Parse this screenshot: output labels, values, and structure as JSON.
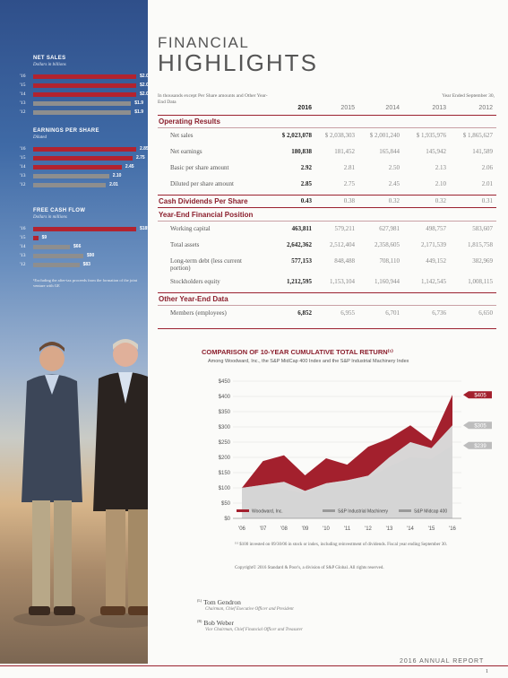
{
  "header": {
    "title_small": "FINANCIAL",
    "title_large": "HIGHLIGHTS"
  },
  "sidebar": {
    "sections": [
      {
        "title": "NET SALES",
        "subtitle": "Dollars in billions",
        "rows": [
          {
            "year": "'16",
            "value": 2.0,
            "label": "$2.0",
            "color": "#b2232f"
          },
          {
            "year": "'15",
            "value": 2.0,
            "label": "$2.0",
            "color": "#b2232f"
          },
          {
            "year": "'14",
            "value": 2.0,
            "label": "$2.0",
            "color": "#b2232f"
          },
          {
            "year": "'13",
            "value": 1.9,
            "label": "$1.9",
            "color": "#8e8e8e"
          },
          {
            "year": "'12",
            "value": 1.9,
            "label": "$1.9",
            "color": "#8e8e8e"
          }
        ]
      },
      {
        "title": "EARNINGS PER SHARE",
        "subtitle": "Diluted",
        "rows": [
          {
            "year": "'16",
            "value": 2.85,
            "label": "2.85",
            "color": "#b2232f"
          },
          {
            "year": "'15",
            "value": 2.75,
            "label": "2.75",
            "color": "#b2232f"
          },
          {
            "year": "'14",
            "value": 2.45,
            "label": "2.45",
            "color": "#b2232f"
          },
          {
            "year": "'13",
            "value": 2.1,
            "label": "2.10",
            "color": "#8e8e8e"
          },
          {
            "year": "'12",
            "value": 2.01,
            "label": "2.01",
            "color": "#8e8e8e"
          }
        ]
      },
      {
        "title": "FREE CASH FLOW",
        "subtitle": "Dollars in millions",
        "rows": [
          {
            "year": "'16",
            "value": 185,
            "label": "$185¹",
            "color": "#b2232f"
          },
          {
            "year": "'15",
            "value": 9,
            "label": "$9",
            "color": "#b2232f"
          },
          {
            "year": "'14",
            "value": 66,
            "label": "$66",
            "color": "#8e8e8e"
          },
          {
            "year": "'13",
            "value": 90,
            "label": "$90",
            "color": "#8e8e8e"
          },
          {
            "year": "'12",
            "value": 83,
            "label": "$83",
            "color": "#8e8e8e"
          }
        ]
      }
    ],
    "footnote": "¹Excluding the after-tax proceeds from the formation of the joint venture with GE"
  },
  "table": {
    "note": "In thousands except Per Share amounts and Other Year-End Data",
    "fiscal_note": "Year Ended September 30,",
    "years": [
      "2016",
      "2015",
      "2014",
      "2013",
      "2012"
    ],
    "sections": [
      {
        "title": "Operating Results",
        "rows": [
          {
            "label": "Net sales",
            "values": [
              "$ 2,023,078",
              "$ 2,038,303",
              "$ 2,001,240",
              "$ 1,935,976",
              "$ 1,865,627"
            ]
          },
          {
            "label": "Net earnings",
            "values": [
              "180,838",
              "181,452",
              "165,844",
              "145,942",
              "141,589"
            ]
          },
          {
            "label": "Basic per share amount",
            "values": [
              "2.92",
              "2.81",
              "2.50",
              "2.13",
              "2.06"
            ]
          },
          {
            "label": "Diluted per share amount",
            "values": [
              "2.85",
              "2.75",
              "2.45",
              "2.10",
              "2.01"
            ]
          }
        ]
      },
      {
        "title": "Cash Dividends Per Share",
        "inline_values": [
          "0.43",
          "0.38",
          "0.32",
          "0.32",
          "0.31"
        ]
      },
      {
        "title": "Year-End Financial Position",
        "rows": [
          {
            "label": "Working capital",
            "values": [
              "463,811",
              "579,211",
              "627,981",
              "498,757",
              "583,607"
            ]
          },
          {
            "label": "Total assets",
            "values": [
              "2,642,362",
              "2,512,404",
              "2,358,605",
              "2,171,539",
              "1,815,758"
            ]
          },
          {
            "label": "Long-term debt (less current portion)",
            "values": [
              "577,153",
              "848,488",
              "708,110",
              "449,152",
              "382,969"
            ]
          },
          {
            "label": "Stockholders equity",
            "values": [
              "1,212,595",
              "1,153,104",
              "1,160,944",
              "1,142,545",
              "1,008,115"
            ]
          }
        ]
      },
      {
        "title": "Other Year-End Data",
        "rows": [
          {
            "label": "Members (employees)",
            "values": [
              "6,852",
              "6,955",
              "6,701",
              "6,736",
              "6,650"
            ]
          }
        ]
      }
    ]
  },
  "chart_data": {
    "type": "area",
    "title": "COMPARISON OF 10-YEAR CUMULATIVE TOTAL RETURN⁽¹⁾",
    "subtitle": "Among Woodward, Inc., the S&P MidCap 400 Index and the S&P Industrial Machinery Index",
    "categories": [
      "'06",
      "'07",
      "'08",
      "'09",
      "'10",
      "'11",
      "'12",
      "'13",
      "'14",
      "'15",
      "'16"
    ],
    "ylim": [
      0,
      450
    ],
    "yticks": [
      "$0",
      "$50",
      "$100",
      "$150",
      "$200",
      "$250",
      "$300",
      "$350",
      "$400",
      "$450"
    ],
    "series": [
      {
        "name": "Woodward, Inc.",
        "color": "#a3202d",
        "end_label": "$405",
        "values": [
          100,
          188,
          207,
          141,
          197,
          176,
          235,
          262,
          305,
          254,
          405
        ]
      },
      {
        "name": "S&P Industrial Machinery",
        "color": "#d8d8d8",
        "end_label": "$305",
        "values": [
          100,
          110,
          120,
          90,
          115,
          125,
          140,
          200,
          250,
          230,
          305
        ]
      },
      {
        "name": "S&P Midcap 400",
        "color": "#b4b4b4",
        "end_label": "$239",
        "values": [
          100,
          108,
          95,
          80,
          110,
          120,
          130,
          170,
          200,
          195,
          239
        ]
      }
    ]
  },
  "footnotes": {
    "chart_note": "⁽¹⁾ $100 invested on 09/30/06 in stock or index, including reinvestment of dividends. Fiscal year ending September 30.",
    "copyright": "Copyright© 2016 Standard & Poor's, a division of S&P Global. All rights reserved."
  },
  "people": [
    {
      "marker": "(L)",
      "name": "Tom Gendron",
      "title": "Chairman, Chief Executive Officer and President"
    },
    {
      "marker": "(R)",
      "name": "Bob Weber",
      "title": "Vice Chairman, Chief Financial Officer and Treasurer"
    }
  ],
  "footer": {
    "report": "2016 ANNUAL REPORT",
    "page": "1"
  }
}
